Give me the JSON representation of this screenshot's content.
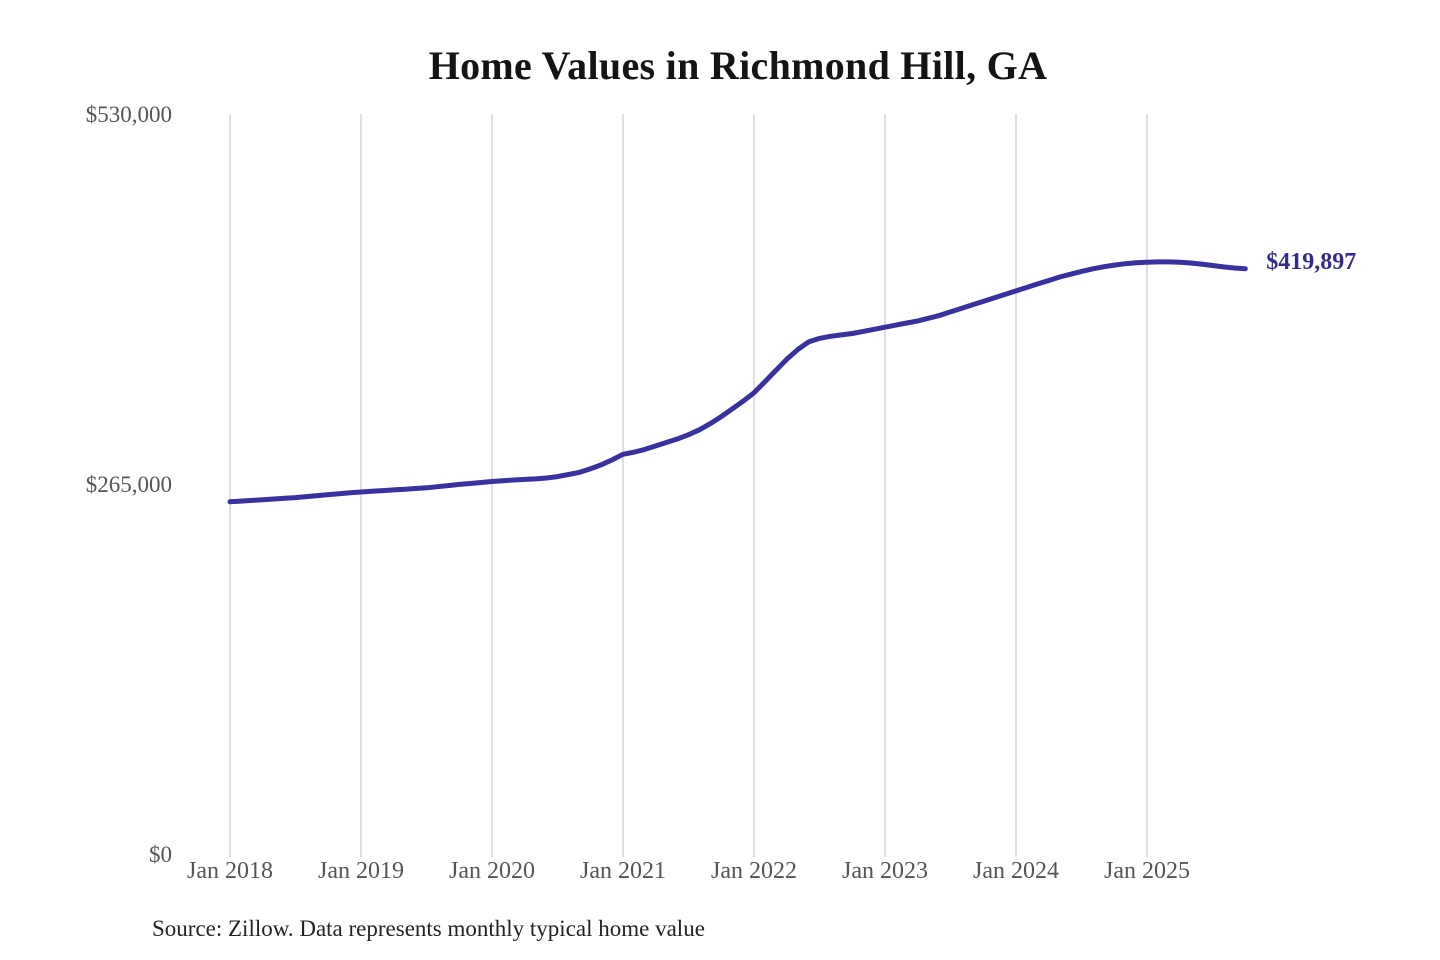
{
  "chart": {
    "title": "Home Values in Richmond Hill, GA",
    "end_label": "$419,897",
    "source": "Source: Zillow. Data represents monthly typical home value"
  },
  "chart_data": {
    "type": "line",
    "title": "Home Values in Richmond Hill, GA",
    "series_name": "Monthly typical home value",
    "source": "Source: Zillow. Data represents monthly typical home value",
    "x_unit": "month",
    "x": [
      "2018-01",
      "2018-02",
      "2018-03",
      "2018-04",
      "2018-05",
      "2018-06",
      "2018-07",
      "2018-08",
      "2018-09",
      "2018-10",
      "2018-11",
      "2018-12",
      "2019-01",
      "2019-02",
      "2019-03",
      "2019-04",
      "2019-05",
      "2019-06",
      "2019-07",
      "2019-08",
      "2019-09",
      "2019-10",
      "2019-11",
      "2019-12",
      "2020-01",
      "2020-02",
      "2020-03",
      "2020-04",
      "2020-05",
      "2020-06",
      "2020-07",
      "2020-08",
      "2020-09",
      "2020-10",
      "2020-11",
      "2020-12",
      "2021-01",
      "2021-02",
      "2021-03",
      "2021-04",
      "2021-05",
      "2021-06",
      "2021-07",
      "2021-08",
      "2021-09",
      "2021-10",
      "2021-11",
      "2021-12",
      "2022-01",
      "2022-02",
      "2022-03",
      "2022-04",
      "2022-05",
      "2022-06",
      "2022-07",
      "2022-08",
      "2022-09",
      "2022-10",
      "2022-11",
      "2022-12",
      "2023-01",
      "2023-02",
      "2023-03",
      "2023-04",
      "2023-05",
      "2023-06",
      "2023-07",
      "2023-08",
      "2023-09",
      "2023-10",
      "2023-11",
      "2023-12",
      "2024-01",
      "2024-02",
      "2024-03",
      "2024-04",
      "2024-05",
      "2024-06",
      "2024-07",
      "2024-08",
      "2024-09",
      "2024-10",
      "2024-11",
      "2024-12",
      "2025-01",
      "2025-02",
      "2025-03",
      "2025-04",
      "2025-05",
      "2025-06",
      "2025-07",
      "2025-08",
      "2025-09",
      "2025-10"
    ],
    "values": [
      253000,
      253500,
      254000,
      254500,
      255000,
      255500,
      256000,
      256700,
      257400,
      258100,
      258700,
      259400,
      260000,
      260500,
      261000,
      261500,
      262000,
      262500,
      263000,
      263800,
      264600,
      265400,
      266100,
      266800,
      267500,
      268100,
      268600,
      269000,
      269400,
      270000,
      271000,
      272500,
      274000,
      276500,
      279500,
      283000,
      287000,
      288500,
      290500,
      293000,
      295500,
      298000,
      301000,
      304500,
      309000,
      314000,
      319500,
      325000,
      331000,
      339000,
      347000,
      355000,
      362000,
      367500,
      370000,
      371500,
      372500,
      373500,
      375000,
      376500,
      378000,
      379500,
      381000,
      382500,
      384500,
      386500,
      389000,
      391500,
      394000,
      396500,
      399000,
      401500,
      404000,
      406500,
      409000,
      411500,
      414000,
      416000,
      418000,
      419800,
      421300,
      422500,
      423500,
      424200,
      424600,
      424800,
      424800,
      424500,
      424000,
      423200,
      422200,
      421200,
      420400,
      419897
    ],
    "x_ticks": [
      "Jan 2018",
      "Jan 2019",
      "Jan 2020",
      "Jan 2021",
      "Jan 2022",
      "Jan 2023",
      "Jan 2024",
      "Jan 2025"
    ],
    "y_ticks": [
      {
        "value": 0,
        "label": "$0"
      },
      {
        "value": 265000,
        "label": "$265,000"
      },
      {
        "value": 530000,
        "label": "$530,000"
      }
    ],
    "ylim": [
      0,
      530000
    ],
    "grid": "vertical-only",
    "legend": "none",
    "end_annotation": {
      "text": "$419,897",
      "value": 419897
    },
    "colors": {
      "line": "#39319d",
      "annotation": "#332c8c",
      "grid": "#cccccc",
      "tick_text": "#555555",
      "title_text": "#141414",
      "source_text": "#232323"
    }
  }
}
